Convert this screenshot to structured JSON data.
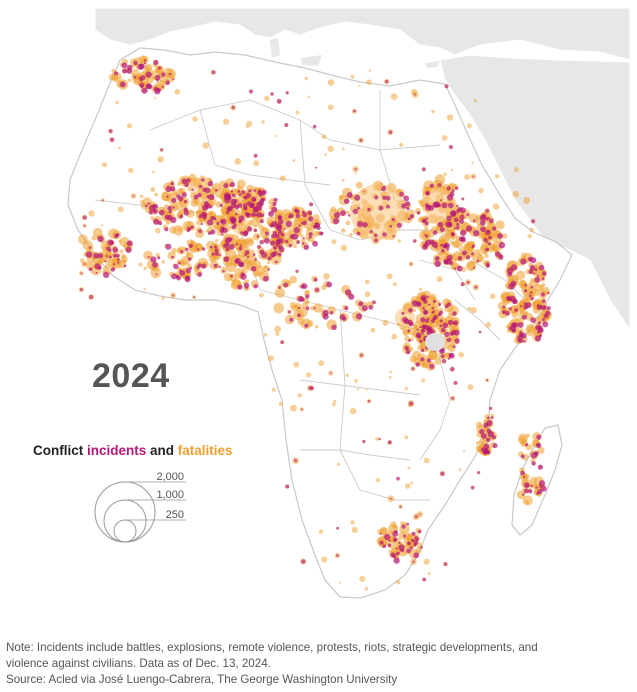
{
  "year": "2024",
  "legend": {
    "title_prefix": "Conflict ",
    "title_incidents": "incidents",
    "title_and": " and ",
    "title_fatalities": "fatalities",
    "sizes": [
      "2,000",
      "1,000",
      "250"
    ]
  },
  "notes": {
    "line1": "Note: Incidents include battles, explosions, remote violence, protests, riots, strategic developments, and",
    "line2": "violence against civilians. Data as of Dec. 13, 2024.",
    "line3": "Source: Acled via José Luengo-Cabrera, The George Washington University"
  },
  "colors": {
    "land": "#ffffff",
    "land_other": "#e7e7e7",
    "sea": "#ffffff",
    "border": "#c8c8c8",
    "incidents": "#b5177a",
    "fatalities": "#f0a030",
    "fatalities_light": "#f7c37a"
  }
}
